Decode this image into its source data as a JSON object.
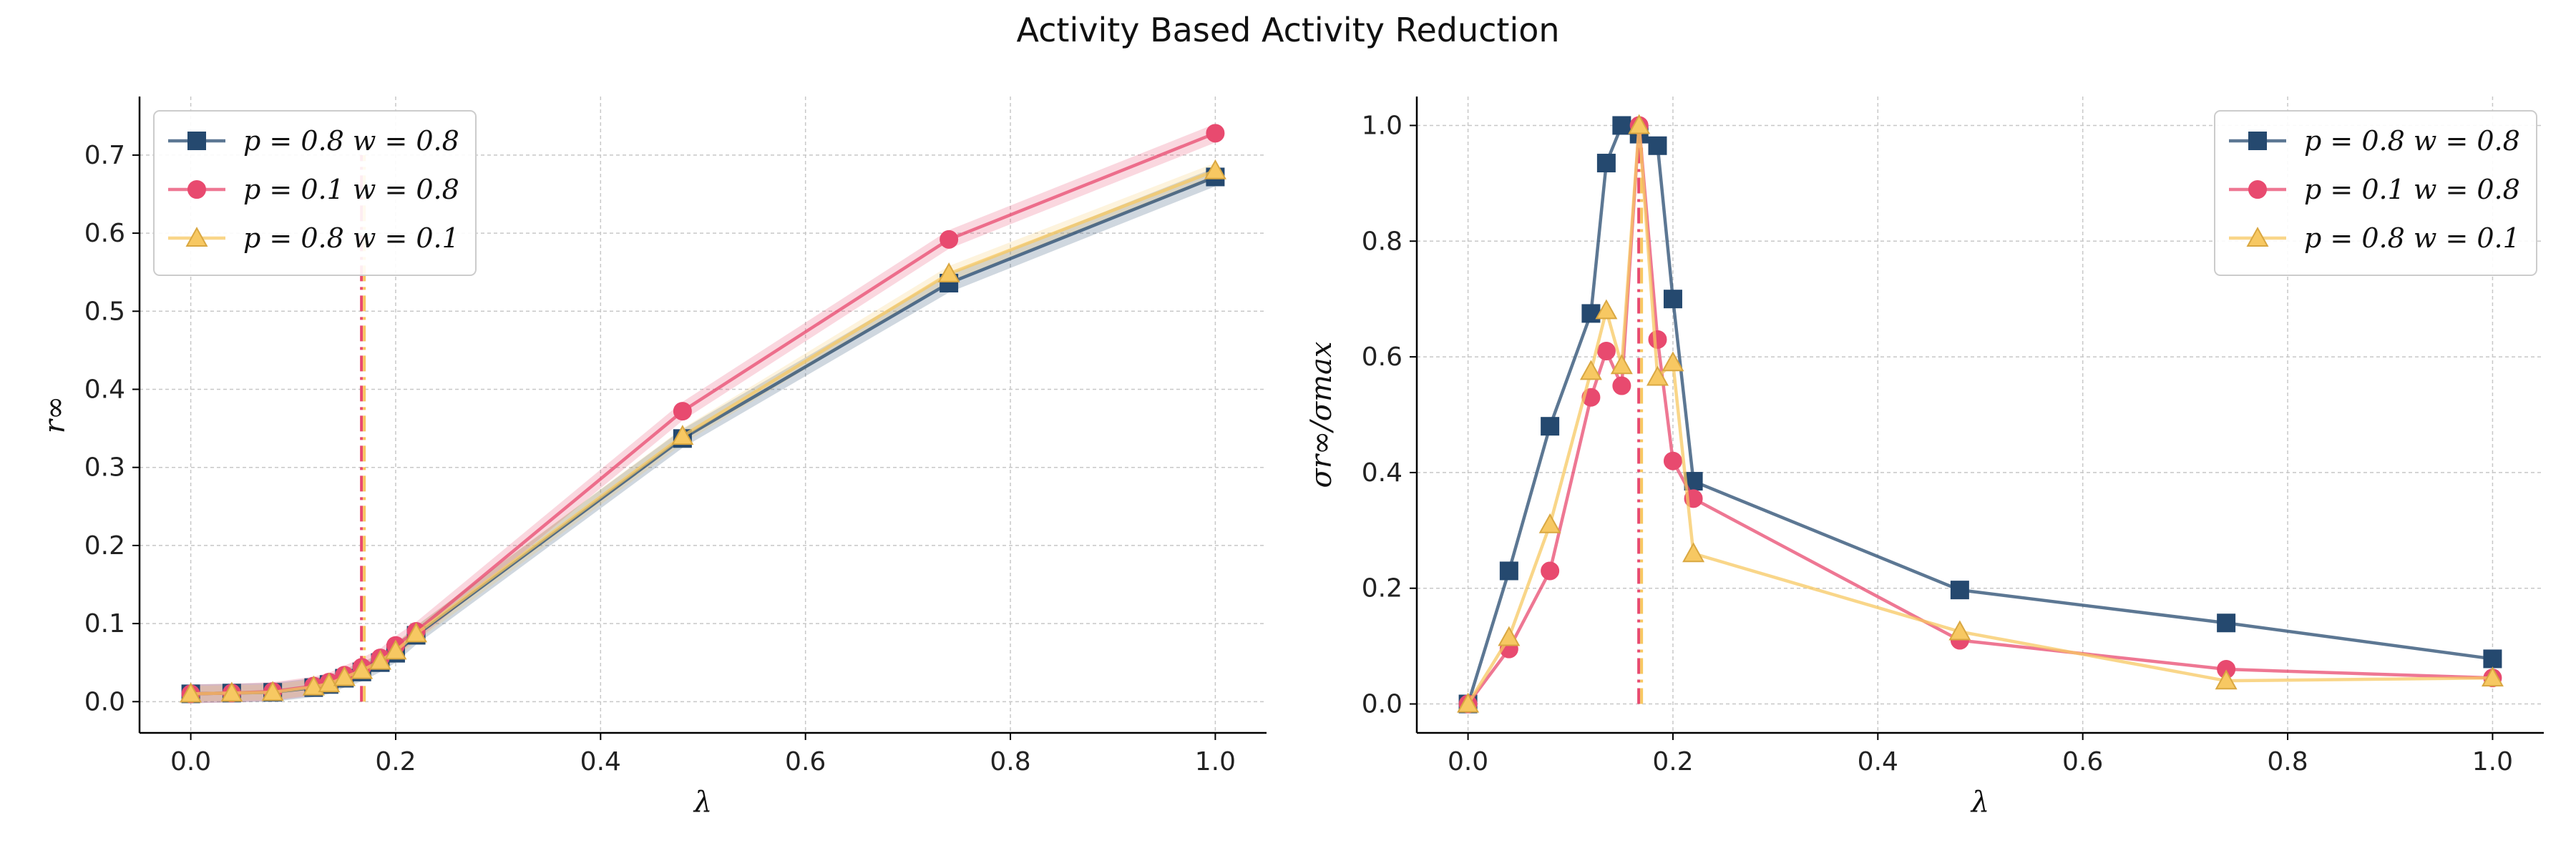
{
  "figure_title": "Activity Based Activity Reduction",
  "colors": {
    "blue": "#25496f",
    "pink": "#e84a6f",
    "yellow": "#f7c862"
  },
  "chart_data": [
    {
      "type": "line",
      "xlabel": "λ",
      "ylabel": "r∞",
      "xlim": [
        -0.05,
        1.05
      ],
      "ylim": [
        -0.04,
        0.775
      ],
      "xticks": [
        0.0,
        0.2,
        0.4,
        0.6,
        0.8,
        1.0
      ],
      "xtick_labels": [
        "0.0",
        "0.2",
        "0.4",
        "0.6",
        "0.8",
        "1.0"
      ],
      "yticks": [
        0.0,
        0.1,
        0.2,
        0.3,
        0.4,
        0.5,
        0.6,
        0.7
      ],
      "ytick_labels": [
        "0.0",
        "0.1",
        "0.2",
        "0.3",
        "0.4",
        "0.5",
        "0.6",
        "0.7"
      ],
      "grid": true,
      "legend_position": "upper-left",
      "vlines": [
        {
          "x": 0.168,
          "colors": [
            "pink",
            "yellow"
          ]
        }
      ],
      "series": [
        {
          "name": "p = 0.8 w = 0.8",
          "color": "blue",
          "marker": "square",
          "band": 0.012,
          "x": [
            0.0,
            0.04,
            0.08,
            0.12,
            0.135,
            0.15,
            0.167,
            0.185,
            0.2,
            0.22,
            0.48,
            0.74,
            1.0
          ],
          "y": [
            0.01,
            0.011,
            0.012,
            0.018,
            0.022,
            0.03,
            0.038,
            0.05,
            0.062,
            0.085,
            0.337,
            0.536,
            0.672
          ]
        },
        {
          "name": "p = 0.1 w = 0.8",
          "color": "pink",
          "marker": "circle",
          "band": 0.012,
          "x": [
            0.0,
            0.04,
            0.08,
            0.12,
            0.135,
            0.15,
            0.167,
            0.185,
            0.2,
            0.22,
            0.48,
            0.74,
            1.0
          ],
          "y": [
            0.01,
            0.011,
            0.013,
            0.02,
            0.025,
            0.034,
            0.044,
            0.056,
            0.072,
            0.09,
            0.372,
            0.592,
            0.728
          ]
        },
        {
          "name": "p = 0.8 w = 0.1",
          "color": "yellow",
          "marker": "triangle",
          "band": 0.01,
          "x": [
            0.0,
            0.04,
            0.08,
            0.12,
            0.135,
            0.15,
            0.167,
            0.185,
            0.2,
            0.22,
            0.48,
            0.74,
            1.0
          ],
          "y": [
            0.01,
            0.011,
            0.012,
            0.019,
            0.023,
            0.031,
            0.04,
            0.052,
            0.065,
            0.087,
            0.34,
            0.548,
            0.68
          ]
        }
      ]
    },
    {
      "type": "line",
      "xlabel": "λ",
      "ylabel": "σr∞/σmax",
      "xlim": [
        -0.05,
        1.05
      ],
      "ylim": [
        -0.05,
        1.05
      ],
      "xticks": [
        0.0,
        0.2,
        0.4,
        0.6,
        0.8,
        1.0
      ],
      "xtick_labels": [
        "0.0",
        "0.2",
        "0.4",
        "0.6",
        "0.8",
        "1.0"
      ],
      "yticks": [
        0.0,
        0.2,
        0.4,
        0.6,
        0.8,
        1.0
      ],
      "ytick_labels": [
        "0.0",
        "0.2",
        "0.4",
        "0.6",
        "0.8",
        "1.0"
      ],
      "grid": true,
      "legend_position": "upper-right",
      "vlines": [
        {
          "x": 0.168,
          "colors": [
            "pink",
            "yellow"
          ]
        }
      ],
      "series": [
        {
          "name": "p = 0.8 w = 0.8",
          "color": "blue",
          "marker": "square",
          "x": [
            0.0,
            0.04,
            0.08,
            0.12,
            0.135,
            0.15,
            0.167,
            0.185,
            0.2,
            0.22,
            0.48,
            0.74,
            1.0
          ],
          "y": [
            0.0,
            0.23,
            0.48,
            0.675,
            0.935,
            1.0,
            0.985,
            0.965,
            0.7,
            0.385,
            0.197,
            0.14,
            0.078
          ]
        },
        {
          "name": "p = 0.1 w = 0.8",
          "color": "pink",
          "marker": "circle",
          "x": [
            0.0,
            0.04,
            0.08,
            0.12,
            0.135,
            0.15,
            0.167,
            0.185,
            0.2,
            0.22,
            0.48,
            0.74,
            1.0
          ],
          "y": [
            0.0,
            0.095,
            0.23,
            0.53,
            0.61,
            0.55,
            1.0,
            0.63,
            0.42,
            0.355,
            0.11,
            0.06,
            0.045
          ]
        },
        {
          "name": "p = 0.8 w = 0.1",
          "color": "yellow",
          "marker": "triangle",
          "x": [
            0.0,
            0.04,
            0.08,
            0.12,
            0.135,
            0.15,
            0.167,
            0.185,
            0.2,
            0.22,
            0.48,
            0.74,
            1.0
          ],
          "y": [
            0.0,
            0.115,
            0.31,
            0.575,
            0.68,
            0.585,
            1.0,
            0.565,
            0.59,
            0.26,
            0.125,
            0.04,
            0.045
          ]
        }
      ]
    }
  ]
}
